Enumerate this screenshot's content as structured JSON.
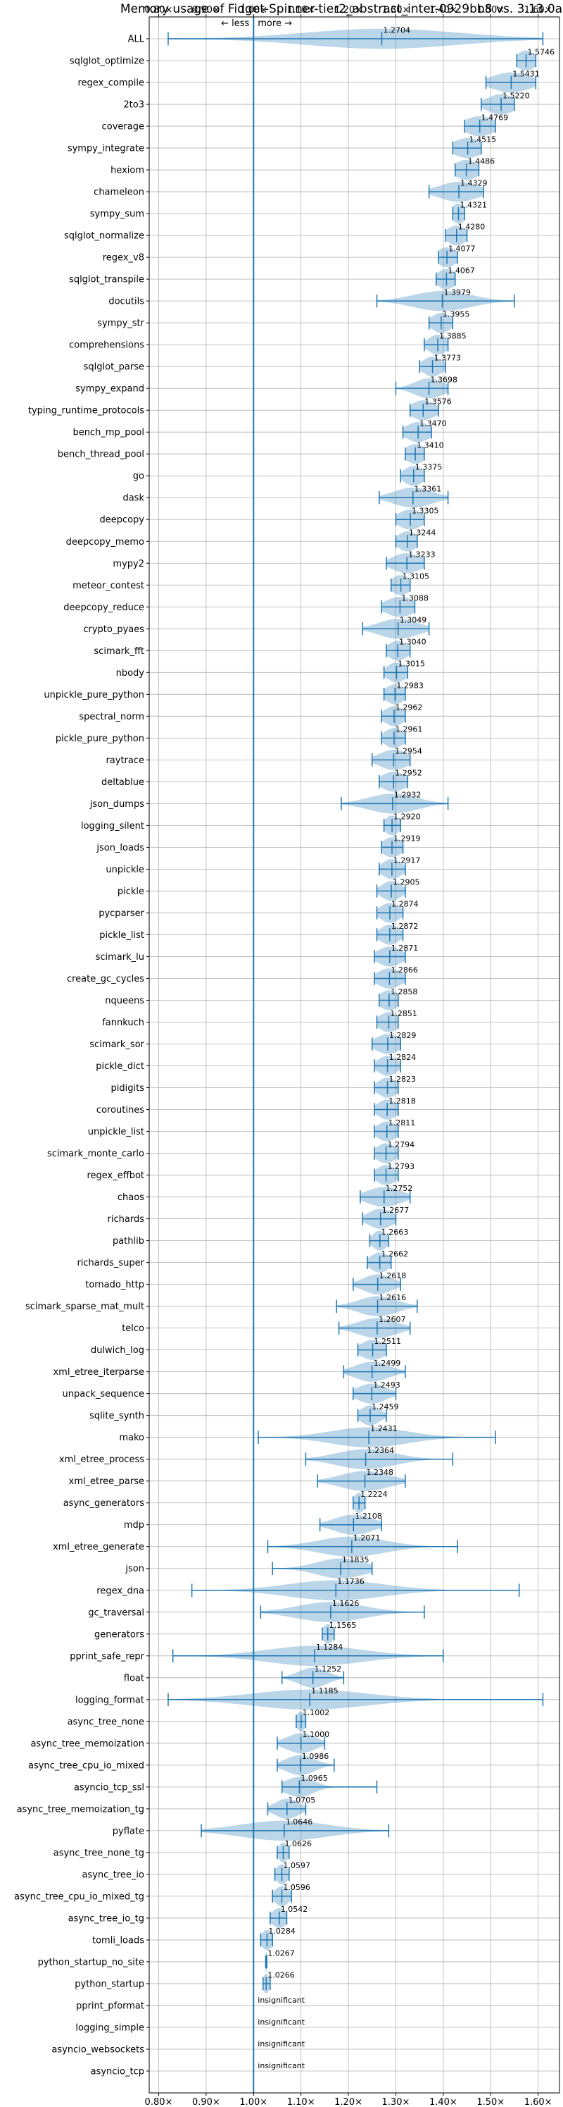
{
  "chart_data": {
    "type": "violin",
    "title": "Memory usage of Fidget-Spinner-tier2_abstract_inter-0929bb8 vs. 3.13.0a",
    "xlim": [
      0.78,
      1.645
    ],
    "x_ticks": [
      0.8,
      0.9,
      1.0,
      1.1,
      1.2,
      1.3,
      1.4,
      1.5,
      1.6
    ],
    "x_tick_labels": [
      "0.80×",
      "0.90×",
      "1.00×",
      "1.10×",
      "1.20×",
      "1.30×",
      "1.40×",
      "1.50×",
      "1.60×"
    ],
    "reference_line": 1.0,
    "less_label": "← less",
    "more_label": "more →",
    "grid": true,
    "rows": [
      {
        "name": "ALL",
        "mean": 1.2704,
        "lo": 0.82,
        "hi": 1.61,
        "label": "1.2704",
        "spread": 0.16,
        "density": "wide"
      },
      {
        "name": "sqlglot_optimize",
        "mean": 1.5746,
        "lo": 1.555,
        "hi": 1.595,
        "label": "1.5746",
        "spread": 0.02
      },
      {
        "name": "regex_compile",
        "mean": 1.5431,
        "lo": 1.49,
        "hi": 1.595,
        "label": "1.5431",
        "spread": 0.04
      },
      {
        "name": "2to3",
        "mean": 1.522,
        "lo": 1.48,
        "hi": 1.55,
        "label": "1.5220",
        "spread": 0.03
      },
      {
        "name": "coverage",
        "mean": 1.4769,
        "lo": 1.445,
        "hi": 1.51,
        "label": "1.4769",
        "spread": 0.03
      },
      {
        "name": "sympy_integrate",
        "mean": 1.4515,
        "lo": 1.42,
        "hi": 1.48,
        "label": "1.4515",
        "spread": 0.03
      },
      {
        "name": "hexiom",
        "mean": 1.4486,
        "lo": 1.425,
        "hi": 1.475,
        "label": "1.4486",
        "spread": 0.025
      },
      {
        "name": "chameleon",
        "mean": 1.4329,
        "lo": 1.37,
        "hi": 1.485,
        "label": "1.4329",
        "spread": 0.04
      },
      {
        "name": "sympy_sum",
        "mean": 1.4321,
        "lo": 1.42,
        "hi": 1.445,
        "label": "1.4321",
        "spread": 0.015
      },
      {
        "name": "sqlglot_normalize",
        "mean": 1.428,
        "lo": 1.405,
        "hi": 1.45,
        "label": "1.4280",
        "spread": 0.02
      },
      {
        "name": "regex_v8",
        "mean": 1.4077,
        "lo": 1.39,
        "hi": 1.43,
        "label": "1.4077",
        "spread": 0.02
      },
      {
        "name": "sqlglot_transpile",
        "mean": 1.4067,
        "lo": 1.385,
        "hi": 1.425,
        "label": "1.4067",
        "spread": 0.02
      },
      {
        "name": "docutils",
        "mean": 1.3979,
        "lo": 1.26,
        "hi": 1.55,
        "label": "1.3979",
        "spread": 0.06
      },
      {
        "name": "sympy_str",
        "mean": 1.3955,
        "lo": 1.37,
        "hi": 1.42,
        "label": "1.3955",
        "spread": 0.02
      },
      {
        "name": "comprehensions",
        "mean": 1.3885,
        "lo": 1.36,
        "hi": 1.41,
        "label": "1.3885",
        "spread": 0.02
      },
      {
        "name": "sqlglot_parse",
        "mean": 1.3773,
        "lo": 1.35,
        "hi": 1.405,
        "label": "1.3773",
        "spread": 0.02
      },
      {
        "name": "sympy_expand",
        "mean": 1.3698,
        "lo": 1.3,
        "hi": 1.41,
        "label": "1.3698",
        "spread": 0.03
      },
      {
        "name": "typing_runtime_protocols",
        "mean": 1.3576,
        "lo": 1.33,
        "hi": 1.39,
        "label": "1.3576",
        "spread": 0.025
      },
      {
        "name": "bench_mp_pool",
        "mean": 1.347,
        "lo": 1.315,
        "hi": 1.375,
        "label": "1.3470",
        "spread": 0.025
      },
      {
        "name": "bench_thread_pool",
        "mean": 1.341,
        "lo": 1.32,
        "hi": 1.36,
        "label": "1.3410",
        "spread": 0.02
      },
      {
        "name": "go",
        "mean": 1.3375,
        "lo": 1.31,
        "hi": 1.36,
        "label": "1.3375",
        "spread": 0.02
      },
      {
        "name": "dask",
        "mean": 1.3361,
        "lo": 1.265,
        "hi": 1.41,
        "label": "1.3361",
        "spread": 0.04
      },
      {
        "name": "deepcopy",
        "mean": 1.3305,
        "lo": 1.3,
        "hi": 1.36,
        "label": "1.3305",
        "spread": 0.025
      },
      {
        "name": "deepcopy_memo",
        "mean": 1.3244,
        "lo": 1.3,
        "hi": 1.345,
        "label": "1.3244",
        "spread": 0.02
      },
      {
        "name": "mypy2",
        "mean": 1.3233,
        "lo": 1.28,
        "hi": 1.36,
        "label": "1.3233",
        "spread": 0.03
      },
      {
        "name": "meteor_contest",
        "mean": 1.3105,
        "lo": 1.29,
        "hi": 1.33,
        "label": "1.3105",
        "spread": 0.02
      },
      {
        "name": "deepcopy_reduce",
        "mean": 1.3088,
        "lo": 1.27,
        "hi": 1.34,
        "label": "1.3088",
        "spread": 0.03
      },
      {
        "name": "crypto_pyaes",
        "mean": 1.3049,
        "lo": 1.23,
        "hi": 1.37,
        "label": "1.3049",
        "spread": 0.04
      },
      {
        "name": "scimark_fft",
        "mean": 1.304,
        "lo": 1.28,
        "hi": 1.33,
        "label": "1.3040",
        "spread": 0.02
      },
      {
        "name": "nbody",
        "mean": 1.3015,
        "lo": 1.275,
        "hi": 1.325,
        "label": "1.3015",
        "spread": 0.02
      },
      {
        "name": "unpickle_pure_python",
        "mean": 1.2983,
        "lo": 1.275,
        "hi": 1.32,
        "label": "1.2983",
        "spread": 0.02
      },
      {
        "name": "spectral_norm",
        "mean": 1.2962,
        "lo": 1.27,
        "hi": 1.32,
        "label": "1.2962",
        "spread": 0.02
      },
      {
        "name": "pickle_pure_python",
        "mean": 1.2961,
        "lo": 1.27,
        "hi": 1.32,
        "label": "1.2961",
        "spread": 0.02
      },
      {
        "name": "raytrace",
        "mean": 1.2954,
        "lo": 1.25,
        "hi": 1.33,
        "label": "1.2954",
        "spread": 0.03
      },
      {
        "name": "deltablue",
        "mean": 1.2952,
        "lo": 1.265,
        "hi": 1.325,
        "label": "1.2952",
        "spread": 0.025
      },
      {
        "name": "json_dumps",
        "mean": 1.2932,
        "lo": 1.185,
        "hi": 1.41,
        "label": "1.2932",
        "spread": 0.05
      },
      {
        "name": "logging_silent",
        "mean": 1.292,
        "lo": 1.275,
        "hi": 1.31,
        "label": "1.2920",
        "spread": 0.015
      },
      {
        "name": "json_loads",
        "mean": 1.2919,
        "lo": 1.27,
        "hi": 1.315,
        "label": "1.2919",
        "spread": 0.02
      },
      {
        "name": "unpickle",
        "mean": 1.2917,
        "lo": 1.265,
        "hi": 1.32,
        "label": "1.2917",
        "spread": 0.02
      },
      {
        "name": "pickle",
        "mean": 1.2905,
        "lo": 1.26,
        "hi": 1.32,
        "label": "1.2905",
        "spread": 0.02
      },
      {
        "name": "pycparser",
        "mean": 1.2874,
        "lo": 1.26,
        "hi": 1.315,
        "label": "1.2874",
        "spread": 0.02
      },
      {
        "name": "pickle_list",
        "mean": 1.2872,
        "lo": 1.26,
        "hi": 1.315,
        "label": "1.2872",
        "spread": 0.02
      },
      {
        "name": "scimark_lu",
        "mean": 1.2871,
        "lo": 1.255,
        "hi": 1.32,
        "label": "1.2871",
        "spread": 0.025
      },
      {
        "name": "create_gc_cycles",
        "mean": 1.2866,
        "lo": 1.255,
        "hi": 1.32,
        "label": "1.2866",
        "spread": 0.025
      },
      {
        "name": "nqueens",
        "mean": 1.2858,
        "lo": 1.265,
        "hi": 1.305,
        "label": "1.2858",
        "spread": 0.02
      },
      {
        "name": "fannkuch",
        "mean": 1.2851,
        "lo": 1.26,
        "hi": 1.305,
        "label": "1.2851",
        "spread": 0.02
      },
      {
        "name": "scimark_sor",
        "mean": 1.2829,
        "lo": 1.25,
        "hi": 1.31,
        "label": "1.2829",
        "spread": 0.025
      },
      {
        "name": "pickle_dict",
        "mean": 1.2824,
        "lo": 1.255,
        "hi": 1.31,
        "label": "1.2824",
        "spread": 0.02
      },
      {
        "name": "pidigits",
        "mean": 1.2823,
        "lo": 1.255,
        "hi": 1.305,
        "label": "1.2823",
        "spread": 0.02
      },
      {
        "name": "coroutines",
        "mean": 1.2818,
        "lo": 1.255,
        "hi": 1.305,
        "label": "1.2818",
        "spread": 0.02
      },
      {
        "name": "unpickle_list",
        "mean": 1.2811,
        "lo": 1.255,
        "hi": 1.305,
        "label": "1.2811",
        "spread": 0.02
      },
      {
        "name": "scimark_monte_carlo",
        "mean": 1.2794,
        "lo": 1.255,
        "hi": 1.305,
        "label": "1.2794",
        "spread": 0.02
      },
      {
        "name": "regex_effbot",
        "mean": 1.2793,
        "lo": 1.255,
        "hi": 1.305,
        "label": "1.2793",
        "spread": 0.02
      },
      {
        "name": "chaos",
        "mean": 1.2752,
        "lo": 1.225,
        "hi": 1.33,
        "label": "1.2752",
        "spread": 0.035
      },
      {
        "name": "richards",
        "mean": 1.2677,
        "lo": 1.23,
        "hi": 1.3,
        "label": "1.2677",
        "spread": 0.025
      },
      {
        "name": "pathlib",
        "mean": 1.2663,
        "lo": 1.245,
        "hi": 1.285,
        "label": "1.2663",
        "spread": 0.015
      },
      {
        "name": "richards_super",
        "mean": 1.2662,
        "lo": 1.24,
        "hi": 1.29,
        "label": "1.2662",
        "spread": 0.02
      },
      {
        "name": "tornado_http",
        "mean": 1.2618,
        "lo": 1.21,
        "hi": 1.31,
        "label": "1.2618",
        "spread": 0.03
      },
      {
        "name": "scimark_sparse_mat_mult",
        "mean": 1.2616,
        "lo": 1.175,
        "hi": 1.345,
        "label": "1.2616",
        "spread": 0.04
      },
      {
        "name": "telco",
        "mean": 1.2607,
        "lo": 1.18,
        "hi": 1.33,
        "label": "1.2607",
        "spread": 0.04
      },
      {
        "name": "dulwich_log",
        "mean": 1.2511,
        "lo": 1.22,
        "hi": 1.28,
        "label": "1.2511",
        "spread": 0.025
      },
      {
        "name": "xml_etree_iterparse",
        "mean": 1.2499,
        "lo": 1.19,
        "hi": 1.32,
        "label": "1.2499",
        "spread": 0.035
      },
      {
        "name": "unpack_sequence",
        "mean": 1.2493,
        "lo": 1.21,
        "hi": 1.3,
        "label": "1.2493",
        "spread": 0.03
      },
      {
        "name": "sqlite_synth",
        "mean": 1.2459,
        "lo": 1.22,
        "hi": 1.28,
        "label": "1.2459",
        "spread": 0.02
      },
      {
        "name": "mako",
        "mean": 1.2431,
        "lo": 1.01,
        "hi": 1.51,
        "label": "1.2431",
        "spread": 0.08
      },
      {
        "name": "xml_etree_process",
        "mean": 1.2364,
        "lo": 1.11,
        "hi": 1.42,
        "label": "1.2364",
        "spread": 0.06
      },
      {
        "name": "xml_etree_parse",
        "mean": 1.2348,
        "lo": 1.135,
        "hi": 1.32,
        "label": "1.2348",
        "spread": 0.05
      },
      {
        "name": "async_generators",
        "mean": 1.2224,
        "lo": 1.21,
        "hi": 1.235,
        "label": "1.2224",
        "spread": 0.012
      },
      {
        "name": "mdp",
        "mean": 1.2108,
        "lo": 1.14,
        "hi": 1.27,
        "label": "1.2108",
        "spread": 0.04
      },
      {
        "name": "xml_etree_generate",
        "mean": 1.2071,
        "lo": 1.03,
        "hi": 1.43,
        "label": "1.2071",
        "spread": 0.07
      },
      {
        "name": "json",
        "mean": 1.1835,
        "lo": 1.04,
        "hi": 1.25,
        "label": "1.1835",
        "spread": 0.05
      },
      {
        "name": "regex_dna",
        "mean": 1.1736,
        "lo": 0.87,
        "hi": 1.56,
        "label": "1.1736",
        "spread": 0.1
      },
      {
        "name": "gc_traversal",
        "mean": 1.1626,
        "lo": 1.015,
        "hi": 1.36,
        "label": "1.1626",
        "spread": 0.07
      },
      {
        "name": "generators",
        "mean": 1.1565,
        "lo": 1.145,
        "hi": 1.17,
        "label": "1.1565",
        "spread": 0.01
      },
      {
        "name": "pprint_safe_repr",
        "mean": 1.1284,
        "lo": 0.83,
        "hi": 1.4,
        "label": "1.1284",
        "spread": 0.1
      },
      {
        "name": "float",
        "mean": 1.1252,
        "lo": 1.06,
        "hi": 1.19,
        "label": "1.1252",
        "spread": 0.03
      },
      {
        "name": "logging_format",
        "mean": 1.1185,
        "lo": 0.82,
        "hi": 1.61,
        "label": "1.1185",
        "spread": 0.12
      },
      {
        "name": "async_tree_none",
        "mean": 1.1002,
        "lo": 1.09,
        "hi": 1.11,
        "label": "1.1002",
        "spread": 0.01
      },
      {
        "name": "async_tree_memoization",
        "mean": 1.1,
        "lo": 1.05,
        "hi": 1.15,
        "label": "1.1000",
        "spread": 0.03
      },
      {
        "name": "async_tree_cpu_io_mixed",
        "mean": 1.0986,
        "lo": 1.05,
        "hi": 1.17,
        "label": "1.0986",
        "spread": 0.03
      },
      {
        "name": "asyncio_tcp_ssl",
        "mean": 1.0965,
        "lo": 1.06,
        "hi": 1.26,
        "label": "1.0965",
        "spread": 0.03
      },
      {
        "name": "async_tree_memoization_tg",
        "mean": 1.0705,
        "lo": 1.03,
        "hi": 1.11,
        "label": "1.0705",
        "spread": 0.025
      },
      {
        "name": "pyflate",
        "mean": 1.0646,
        "lo": 0.89,
        "hi": 1.285,
        "label": "1.0646",
        "spread": 0.09
      },
      {
        "name": "async_tree_none_tg",
        "mean": 1.0626,
        "lo": 1.05,
        "hi": 1.075,
        "label": "1.0626",
        "spread": 0.01
      },
      {
        "name": "async_tree_io",
        "mean": 1.0597,
        "lo": 1.045,
        "hi": 1.075,
        "label": "1.0597",
        "spread": 0.012
      },
      {
        "name": "async_tree_cpu_io_mixed_tg",
        "mean": 1.0596,
        "lo": 1.04,
        "hi": 1.08,
        "label": "1.0596",
        "spread": 0.015
      },
      {
        "name": "async_tree_io_tg",
        "mean": 1.0542,
        "lo": 1.035,
        "hi": 1.07,
        "label": "1.0542",
        "spread": 0.015
      },
      {
        "name": "tomli_loads",
        "mean": 1.0284,
        "lo": 1.015,
        "hi": 1.04,
        "label": "1.0284",
        "spread": 0.012
      },
      {
        "name": "python_startup_no_site",
        "mean": 1.0267,
        "lo": 1.0255,
        "hi": 1.028,
        "label": "1.0267",
        "spread": 0.002
      },
      {
        "name": "python_startup",
        "mean": 1.0266,
        "lo": 1.02,
        "hi": 1.035,
        "label": "1.0266",
        "spread": 0.006
      },
      {
        "name": "pprint_pformat",
        "insignificant": true,
        "label": "insignificant"
      },
      {
        "name": "logging_simple",
        "insignificant": true,
        "label": "insignificant"
      },
      {
        "name": "asyncio_websockets",
        "insignificant": true,
        "label": "insignificant"
      },
      {
        "name": "asyncio_tcp",
        "insignificant": true,
        "label": "insignificant"
      }
    ]
  }
}
